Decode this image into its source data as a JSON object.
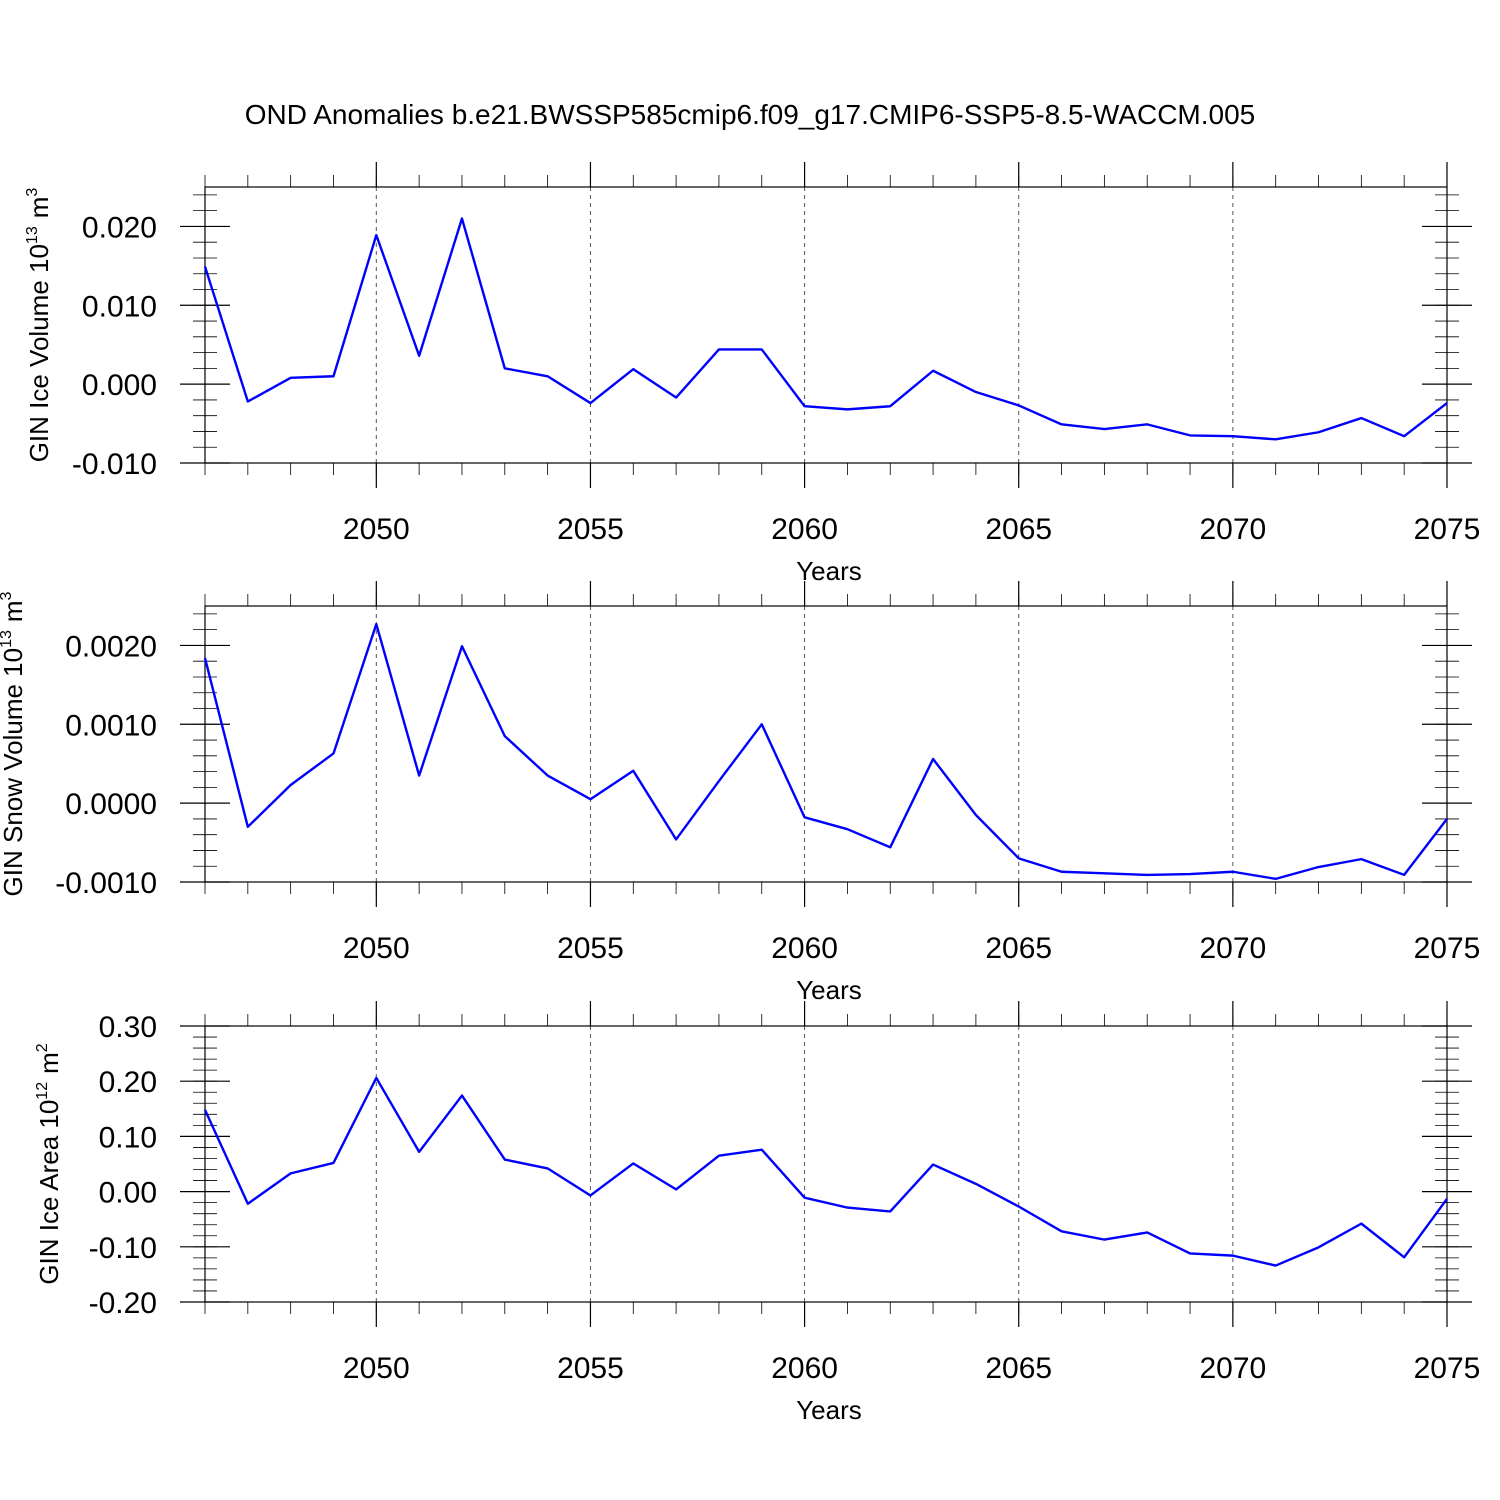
{
  "chart_data": [
    {
      "type": "line",
      "title": "OND Anomalies b.e21.BWSSP585cmip6.f09_g17.CMIP6-SSP5-8.5-WACCM.005",
      "xlabel": "Years",
      "ylabel": {
        "text": "GIN Ice Volume 10",
        "exponent": "13",
        "unit": "m",
        "unit_exponent": "3"
      },
      "x": [
        2046,
        2047,
        2048,
        2049,
        2050,
        2051,
        2052,
        2053,
        2054,
        2055,
        2056,
        2057,
        2058,
        2059,
        2060,
        2061,
        2062,
        2063,
        2064,
        2065,
        2066,
        2067,
        2068,
        2069,
        2070,
        2071,
        2072,
        2073,
        2074,
        2075
      ],
      "values": [
        0.0149,
        -0.0022,
        0.0008,
        0.001,
        0.0189,
        0.0036,
        0.021,
        0.002,
        0.001,
        -0.0024,
        0.0019,
        -0.0017,
        0.0044,
        0.0044,
        -0.0028,
        -0.0032,
        -0.0028,
        0.0017,
        -0.001,
        -0.0027,
        -0.0051,
        -0.0057,
        -0.0051,
        -0.0065,
        -0.0066,
        -0.007,
        -0.0061,
        -0.0043,
        -0.0066,
        -0.0024
      ],
      "color": "#0000ff",
      "xlim": [
        2046,
        2075
      ],
      "xticks": [
        2050,
        2055,
        2060,
        2065,
        2070,
        2075
      ],
      "ylim": [
        -0.01,
        0.025
      ],
      "yticks": [
        {
          "value": -0.01,
          "label": "-0.010"
        },
        {
          "value": 0,
          "label": "0.000"
        },
        {
          "value": 0.01,
          "label": "0.010"
        },
        {
          "value": 0.02,
          "label": "0.020"
        }
      ],
      "grid": true
    },
    {
      "type": "line",
      "xlabel": "Years",
      "ylabel": {
        "text": "GIN Snow Volume 10",
        "exponent": "13",
        "unit": "m",
        "unit_exponent": "3"
      },
      "x": [
        2046,
        2047,
        2048,
        2049,
        2050,
        2051,
        2052,
        2053,
        2054,
        2055,
        2056,
        2057,
        2058,
        2059,
        2060,
        2061,
        2062,
        2063,
        2064,
        2065,
        2066,
        2067,
        2068,
        2069,
        2070,
        2071,
        2072,
        2073,
        2074,
        2075
      ],
      "values": [
        0.00184,
        -0.0003,
        0.00023,
        0.00063,
        0.00227,
        0.00035,
        0.00199,
        0.00085,
        0.00035,
        5e-05,
        0.00041,
        -0.00046,
        0.00028,
        0.001,
        -0.00018,
        -0.00033,
        -0.00056,
        0.00056,
        -0.00015,
        -0.0007,
        -0.00087,
        -0.00089,
        -0.00091,
        -0.0009,
        -0.00087,
        -0.00096,
        -0.00081,
        -0.00071,
        -0.00091,
        -0.0002
      ],
      "color": "#0000ff",
      "xlim": [
        2046,
        2075
      ],
      "xticks": [
        2050,
        2055,
        2060,
        2065,
        2070,
        2075
      ],
      "ylim": [
        -0.001,
        0.0025
      ],
      "yticks": [
        {
          "value": -0.001,
          "label": "-0.0010"
        },
        {
          "value": 0,
          "label": "0.0000"
        },
        {
          "value": 0.001,
          "label": "0.0010"
        },
        {
          "value": 0.002,
          "label": "0.0020"
        }
      ],
      "grid": true
    },
    {
      "type": "line",
      "xlabel": "Years",
      "ylabel": {
        "text": "GIN Ice Area 10",
        "exponent": "12",
        "unit": "m",
        "unit_exponent": "2"
      },
      "x": [
        2046,
        2047,
        2048,
        2049,
        2050,
        2051,
        2052,
        2053,
        2054,
        2055,
        2056,
        2057,
        2058,
        2059,
        2060,
        2061,
        2062,
        2063,
        2064,
        2065,
        2066,
        2067,
        2068,
        2069,
        2070,
        2071,
        2072,
        2073,
        2074,
        2075
      ],
      "values": [
        0.148,
        -0.022,
        0.033,
        0.052,
        0.206,
        0.072,
        0.174,
        0.058,
        0.042,
        -0.007,
        0.051,
        0.004,
        0.065,
        0.076,
        -0.011,
        -0.029,
        -0.036,
        0.049,
        0.014,
        -0.027,
        -0.072,
        -0.087,
        -0.074,
        -0.112,
        -0.116,
        -0.134,
        -0.101,
        -0.058,
        -0.119,
        -0.013
      ],
      "color": "#0000ff",
      "xlim": [
        2046,
        2075
      ],
      "xticks": [
        2050,
        2055,
        2060,
        2065,
        2070,
        2075
      ],
      "ylim": [
        -0.2,
        0.3
      ],
      "yticks": [
        {
          "value": -0.2,
          "label": "-0.20"
        },
        {
          "value": -0.1,
          "label": "-0.10"
        },
        {
          "value": 0,
          "label": "0.00"
        },
        {
          "value": 0.1,
          "label": "0.10"
        },
        {
          "value": 0.2,
          "label": "0.20"
        },
        {
          "value": 0.3,
          "label": "0.30"
        }
      ],
      "grid": true
    }
  ]
}
